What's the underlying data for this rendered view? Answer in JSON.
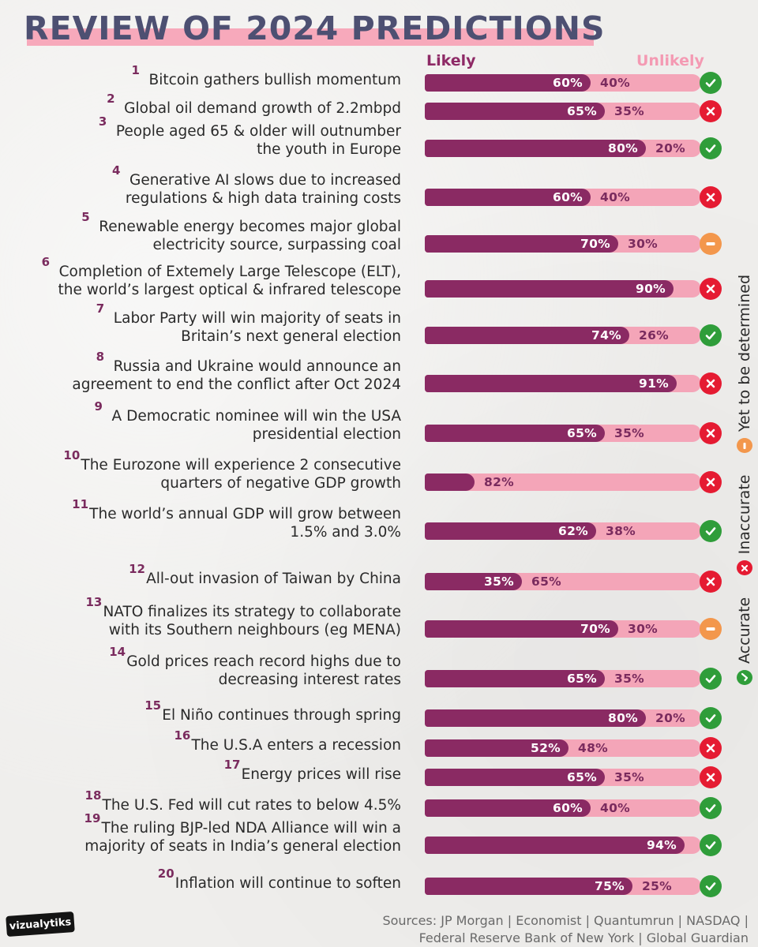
{
  "title": "REVIEW OF 2024 PREDICTIONS",
  "legend": {
    "likely": "Likely",
    "unlikely": "Unlikely",
    "accurate": "Accurate",
    "inaccurate": "Inaccurate",
    "tbd": "Yet to be determined"
  },
  "colors": {
    "likely": "#8a2a63",
    "unlikely": "#f4a5b8",
    "accurate": "#2f9d3a",
    "inaccurate": "#e51b32",
    "tbd": "#f3974c",
    "title": "#4d5072"
  },
  "icons": {
    "accurate": "check-icon",
    "inaccurate": "x-icon",
    "tbd": "minus-icon"
  },
  "chart_data": {
    "type": "bar",
    "orientation": "horizontal-stacked-100",
    "title": "REVIEW OF 2024 PREDICTIONS",
    "series_names": [
      "Likely",
      "Unlikely"
    ],
    "xlim": [
      0,
      100
    ],
    "rows": [
      {
        "n": "1",
        "lines": [
          "Bitcoin gathers bullish momentum"
        ],
        "likely": 60,
        "likely_label": "60%",
        "unlikely_label": "40%",
        "status": "accurate"
      },
      {
        "n": "2",
        "lines": [
          "Global oil demand growth of 2.2mbpd"
        ],
        "likely": 65,
        "likely_label": "65%",
        "unlikely_label": "35%",
        "status": "inaccurate"
      },
      {
        "n": "3",
        "lines": [
          "People aged 65 & older will outnumber",
          "the youth in Europe"
        ],
        "likely": 80,
        "likely_label": "80%",
        "unlikely_label": "20%",
        "status": "accurate"
      },
      {
        "n": "4",
        "lines": [
          "Generative AI slows due to increased",
          "regulations & high data training costs"
        ],
        "likely": 60,
        "likely_label": "60%",
        "unlikely_label": "40%",
        "status": "inaccurate"
      },
      {
        "n": "5",
        "lines": [
          "Renewable energy becomes major global",
          "electricity source, surpassing coal"
        ],
        "likely": 70,
        "likely_label": "70%",
        "unlikely_label": "30%",
        "status": "tbd"
      },
      {
        "n": "6",
        "lines": [
          "Completion of Extemely Large Telescope (ELT),",
          "the world’s largest optical & infrared telescope"
        ],
        "likely": 90,
        "likely_label": "90%",
        "unlikely_label": "",
        "status": "inaccurate"
      },
      {
        "n": "7",
        "lines": [
          "Labor Party will win majority of seats in",
          "Britain’s next general election"
        ],
        "likely": 74,
        "likely_label": "74%",
        "unlikely_label": "26%",
        "status": "accurate"
      },
      {
        "n": "8",
        "lines": [
          "Russia and Ukraine would announce an",
          "agreement to end the conflict after Oct 2024"
        ],
        "likely": 91,
        "likely_label": "91%",
        "unlikely_label": "",
        "status": "inaccurate"
      },
      {
        "n": "9",
        "lines": [
          "A Democratic nominee will win the USA",
          "presidential election"
        ],
        "likely": 65,
        "likely_label": "65%",
        "unlikely_label": "35%",
        "status": "inaccurate"
      },
      {
        "n": "10",
        "lines": [
          "The Eurozone will experience 2 consecutive",
          "quarters of negative GDP growth"
        ],
        "likely": 18,
        "likely_label": "",
        "unlikely_label": "82%",
        "status": "inaccurate"
      },
      {
        "n": "11",
        "lines": [
          "The world’s annual GDP will grow between",
          "1.5% and 3.0%"
        ],
        "likely": 62,
        "likely_label": "62%",
        "unlikely_label": "38%",
        "status": "accurate"
      },
      {
        "n": "12",
        "lines": [
          "All-out invasion of Taiwan by China"
        ],
        "likely": 35,
        "likely_label": "35%",
        "unlikely_label": "65%",
        "status": "inaccurate"
      },
      {
        "n": "13",
        "lines": [
          "NATO finalizes its strategy to collaborate",
          "with its Southern neighbours (eg MENA)"
        ],
        "likely": 70,
        "likely_label": "70%",
        "unlikely_label": "30%",
        "status": "tbd"
      },
      {
        "n": "14",
        "lines": [
          "Gold prices reach record highs due to",
          "decreasing interest rates"
        ],
        "likely": 65,
        "likely_label": "65%",
        "unlikely_label": "35%",
        "status": "accurate"
      },
      {
        "n": "15",
        "lines": [
          "El Niño continues through spring"
        ],
        "likely": 80,
        "likely_label": "80%",
        "unlikely_label": "20%",
        "status": "accurate"
      },
      {
        "n": "16",
        "lines": [
          "The U.S.A enters a recession"
        ],
        "likely": 52,
        "likely_label": "52%",
        "unlikely_label": "48%",
        "status": "inaccurate"
      },
      {
        "n": "17",
        "lines": [
          "Energy prices will rise"
        ],
        "likely": 65,
        "likely_label": "65%",
        "unlikely_label": "35%",
        "status": "inaccurate"
      },
      {
        "n": "18",
        "lines": [
          "The U.S. Fed will cut rates to below 4.5%"
        ],
        "likely": 60,
        "likely_label": "60%",
        "unlikely_label": "40%",
        "status": "accurate"
      },
      {
        "n": "19",
        "lines": [
          "The ruling BJP-led NDA Alliance will win a",
          "majority of seats in India’s general election"
        ],
        "likely": 94,
        "likely_label": "94%",
        "unlikely_label": "",
        "status": "accurate"
      },
      {
        "n": "20",
        "lines": [
          "Inflation will continue to soften"
        ],
        "likely": 75,
        "likely_label": "75%",
        "unlikely_label": "25%",
        "status": "accurate"
      }
    ]
  },
  "logo_text": "vizualytiks",
  "sources": {
    "line1": "Sources: JP Morgan | Economist | Quantumrun | NASDAQ |",
    "line2": "Federal Reserve Bank of New York | Global Guardian"
  }
}
